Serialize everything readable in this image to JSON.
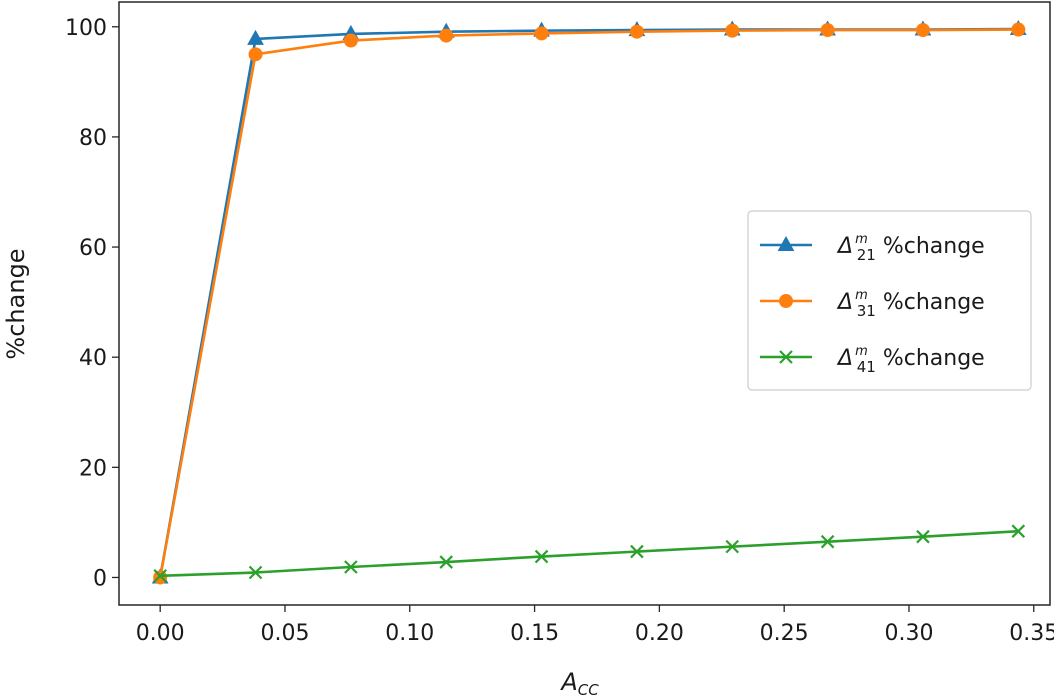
{
  "chart_data": {
    "type": "line",
    "xlabel_main": "A",
    "xlabel_sub": "CC",
    "ylabel": "%change",
    "xlim": [
      -0.0165,
      0.3565
    ],
    "ylim": [
      -5.0,
      104.5
    ],
    "xticks": [
      0.0,
      0.05,
      0.1,
      0.15,
      0.2,
      0.25,
      0.3,
      0.35
    ],
    "xtick_labels": [
      "0.00",
      "0.05",
      "0.10",
      "0.15",
      "0.20",
      "0.25",
      "0.30",
      "0.35"
    ],
    "yticks": [
      0,
      20,
      40,
      60,
      80,
      100
    ],
    "ytick_labels": [
      "0",
      "20",
      "40",
      "60",
      "80",
      "100"
    ],
    "grid": false,
    "legend_position": "center-right",
    "x": [
      0.0,
      0.0382,
      0.0764,
      0.1146,
      0.1528,
      0.191,
      0.2292,
      0.2674,
      0.3056,
      0.3438
    ],
    "series": [
      {
        "name_main": "Δ",
        "name_sub": "21",
        "name_sup": "m",
        "name_rest": " %change",
        "color": "#1f77b4",
        "marker": "triangle",
        "values": [
          0.0,
          97.8,
          98.7,
          99.1,
          99.3,
          99.4,
          99.5,
          99.5,
          99.5,
          99.6
        ]
      },
      {
        "name_main": "Δ",
        "name_sub": "31",
        "name_sup": "m",
        "name_rest": " %change",
        "color": "#ff7f0e",
        "marker": "circle",
        "values": [
          0.0,
          95.0,
          97.5,
          98.4,
          98.8,
          99.1,
          99.3,
          99.4,
          99.4,
          99.5
        ]
      },
      {
        "name_main": "Δ",
        "name_sub": "41",
        "name_sup": "m",
        "name_rest": " %change",
        "color": "#2ca02c",
        "marker": "x",
        "values": [
          0.3,
          0.9,
          1.9,
          2.8,
          3.8,
          4.7,
          5.6,
          6.5,
          7.4,
          8.4
        ]
      }
    ]
  }
}
